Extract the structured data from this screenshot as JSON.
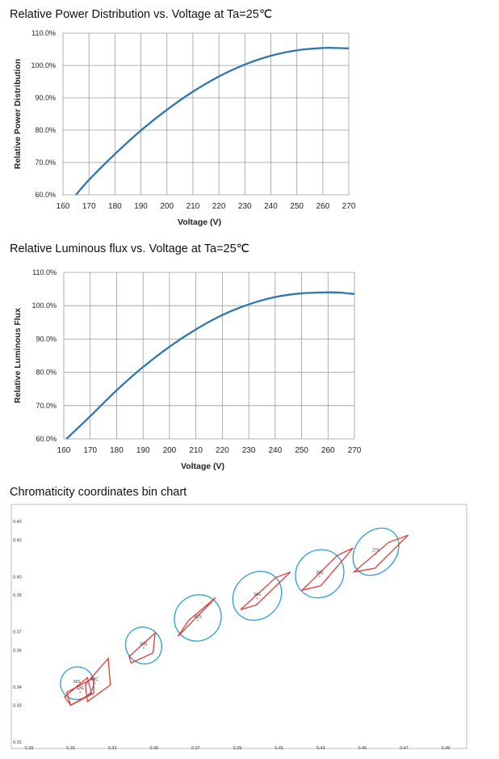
{
  "chart_data": [
    {
      "type": "line",
      "title": "Relative Power Distribution vs. Voltage at Ta=25℃",
      "xlabel": "Voltage (V)",
      "ylabel": "Relative Power Distribution",
      "xlim": [
        160,
        270
      ],
      "ylim": [
        60,
        110
      ],
      "xticks": [
        "160",
        "170",
        "180",
        "190",
        "200",
        "210",
        "220",
        "230",
        "240",
        "250",
        "260",
        "270"
      ],
      "yticks": [
        "60.0%",
        "70.0%",
        "80.0%",
        "90.0%",
        "100.0%",
        "110.0%"
      ],
      "grid": true,
      "color": "#2e77ae",
      "series": [
        {
          "x": [
            165,
            170,
            180,
            190,
            200,
            210,
            220,
            230,
            240,
            250,
            260,
            265,
            270
          ],
          "y": [
            60.0,
            64.6,
            72.6,
            79.9,
            86.3,
            91.9,
            96.6,
            100.3,
            103.0,
            104.7,
            105.4,
            105.4,
            105.3
          ]
        }
      ]
    },
    {
      "type": "line",
      "title": "Relative Luminous flux vs. Voltage at Ta=25℃",
      "xlabel": "Voltage (V)",
      "ylabel": "Relative Luminous Flux",
      "xlim": [
        160,
        270
      ],
      "ylim": [
        60,
        110
      ],
      "xticks": [
        "160",
        "170",
        "180",
        "190",
        "200",
        "210",
        "220",
        "230",
        "240",
        "250",
        "260",
        "270"
      ],
      "yticks": [
        "60.0%",
        "70.0%",
        "80.0%",
        "90.0%",
        "100.0%",
        "110.0%"
      ],
      "grid": true,
      "color": "#2e77ae",
      "series": [
        {
          "x": [
            161,
            170,
            180,
            190,
            200,
            210,
            220,
            230,
            240,
            250,
            260,
            265,
            270
          ],
          "y": [
            60.0,
            66.8,
            74.6,
            81.6,
            87.7,
            92.9,
            97.2,
            100.4,
            102.6,
            103.7,
            104.0,
            103.9,
            103.5
          ]
        }
      ]
    },
    {
      "type": "scatter",
      "title": "Chromaticity coordinates bin chart",
      "xlim": [
        0.29,
        0.49
      ],
      "ylim": [
        0.31,
        0.43
      ],
      "xticks": [
        "0.29",
        "0.31",
        "0.33",
        "0.35",
        "0.37",
        "0.39",
        "0.41",
        "0.43",
        "0.45",
        "0.47",
        "0.49"
      ],
      "yticks": [
        "0.31",
        "0.33",
        "0.34",
        "0.36",
        "0.37",
        "0.39",
        "0.40",
        "0.42",
        "0.43"
      ],
      "ytick_values": [
        0.31,
        0.33,
        0.34,
        0.36,
        0.37,
        0.39,
        0.4,
        0.42,
        0.43
      ],
      "quad_color": "#e03c3c",
      "ellipse_color": "#2a9fd0",
      "bins": [
        {
          "label": "65S",
          "cx": 0.313,
          "cy": 0.342,
          "ellipse": {
            "rx": 0.008,
            "ry": 0.0125,
            "angle": 32
          },
          "quad": [
            [
              0.307,
              0.3345
            ],
            [
              0.318,
              0.345
            ],
            [
              0.32,
              0.3365
            ],
            [
              0.31,
              0.33
            ]
          ]
        },
        {
          "label": "62G",
          "cx": 0.3145,
          "cy": 0.3385,
          "ellipse": null,
          "quad": [
            [
              0.308,
              0.337
            ],
            [
              0.321,
              0.3448
            ],
            [
              0.321,
              0.3365
            ],
            [
              0.31,
              0.33
            ]
          ]
        },
        {
          "label": "50C",
          "cx": 0.3215,
          "cy": 0.3433,
          "ellipse": null,
          "quad": [
            [
              0.317,
              0.3412
            ],
            [
              0.328,
              0.3555
            ],
            [
              0.329,
              0.341
            ],
            [
              0.318,
              0.332
            ]
          ]
        },
        {
          "label": "50S",
          "cx": 0.345,
          "cy": 0.3625,
          "ellipse": {
            "rx": 0.0085,
            "ry": 0.0145,
            "angle": 38
          },
          "quad": [
            [
              0.338,
              0.3565
            ],
            [
              0.3505,
              0.3693
            ],
            [
              0.3495,
              0.3585
            ],
            [
              0.339,
              0.353
            ]
          ]
        },
        {
          "label": "41S",
          "cx": 0.371,
          "cy": 0.3775,
          "ellipse": {
            "rx": 0.0115,
            "ry": 0.0175,
            "angle": 38
          },
          "quad": [
            [
              0.3615,
              0.3675
            ],
            [
              0.3765,
              0.385
            ],
            [
              0.3795,
              0.3885
            ],
            [
              0.3665,
              0.376
            ]
          ]
        },
        {
          "label": "34S",
          "cx": 0.3995,
          "cy": 0.3895,
          "ellipse": {
            "rx": 0.0125,
            "ry": 0.0175,
            "angle": 45
          },
          "quad": [
            [
              0.3915,
              0.382
            ],
            [
              0.4085,
              0.3995
            ],
            [
              0.4155,
              0.4025
            ],
            [
              0.399,
              0.3845
            ]
          ]
        },
        {
          "label": "29S",
          "cx": 0.4295,
          "cy": 0.4015,
          "ellipse": {
            "rx": 0.012,
            "ry": 0.018,
            "angle": 43
          },
          "quad": [
            [
              0.421,
              0.3925
            ],
            [
              0.438,
              0.4115
            ],
            [
              0.4455,
              0.4155
            ],
            [
              0.43,
              0.395
            ]
          ]
        },
        {
          "label": "27S",
          "cx": 0.4565,
          "cy": 0.4135,
          "ellipse": {
            "rx": 0.0125,
            "ry": 0.0155,
            "angle": 48
          },
          "quad": [
            [
              0.446,
              0.4025
            ],
            [
              0.4625,
              0.4185
            ],
            [
              0.472,
              0.4225
            ],
            [
              0.456,
              0.4045
            ]
          ]
        }
      ]
    }
  ]
}
